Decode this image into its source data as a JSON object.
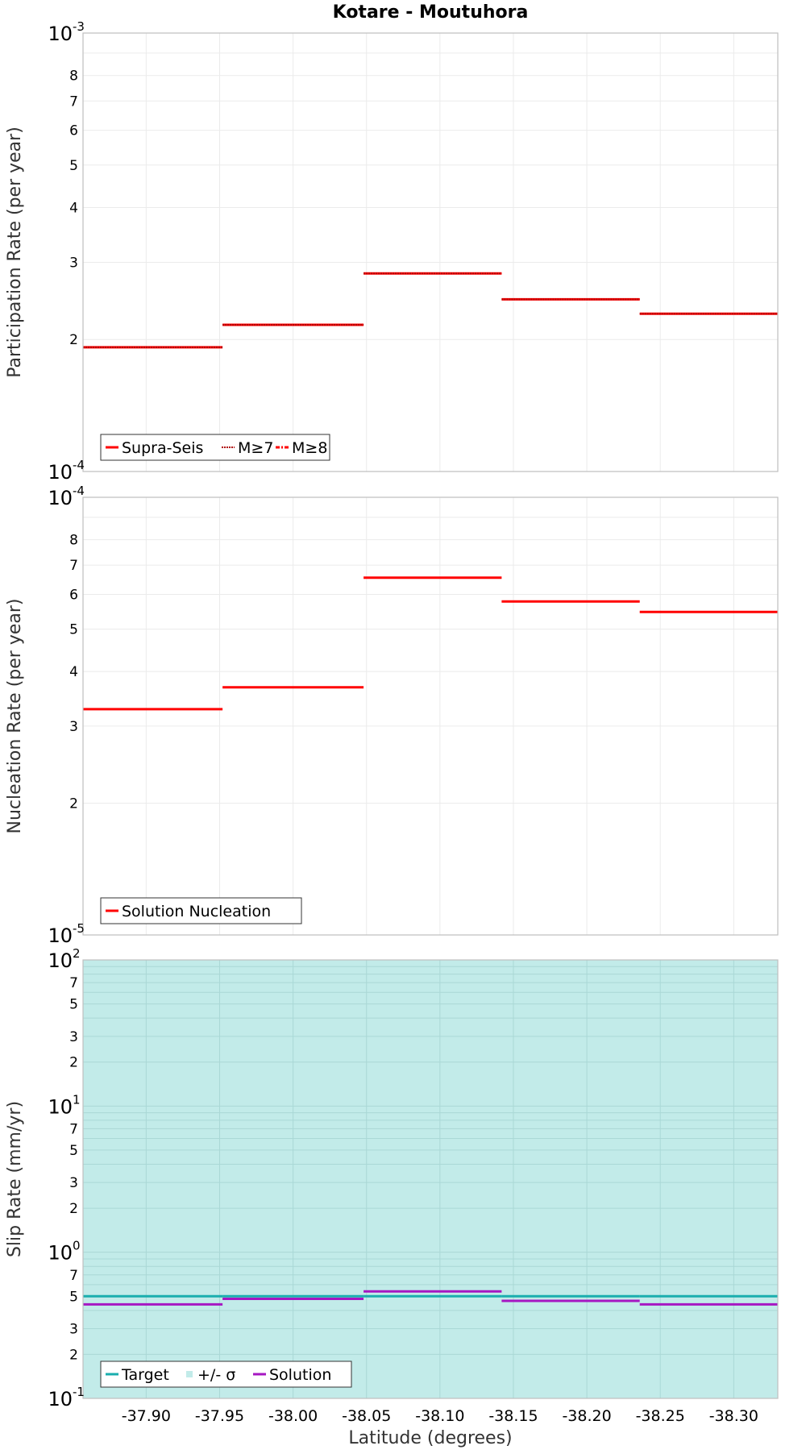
{
  "figure_title": "Kotare - Moutuhora",
  "x_axis_label": "Latitude (degrees)",
  "chart_data": [
    {
      "type": "line",
      "name": "participation",
      "title": "Kotare - Moutuhora",
      "ylabel": "Participation Rate (per year)",
      "yscale": "log",
      "ylim": [
        0.0001,
        0.001
      ],
      "xlim": [
        -37.857,
        -38.33
      ],
      "x_ticks": [
        -37.9,
        -37.95,
        -38.0,
        -38.05,
        -38.1,
        -38.15,
        -38.2,
        -38.25,
        -38.3
      ],
      "y_ticks": [
        {
          "value": 0.001,
          "base": "10",
          "exp": "-3"
        },
        {
          "value": 0.0008,
          "label": "8"
        },
        {
          "value": 0.0007,
          "label": "7"
        },
        {
          "value": 0.0006,
          "label": "6"
        },
        {
          "value": 0.0005,
          "label": "5"
        },
        {
          "value": 0.0004,
          "label": "4"
        },
        {
          "value": 0.0003,
          "label": "3"
        },
        {
          "value": 0.0002,
          "label": "2"
        },
        {
          "value": 0.0001,
          "base": "10",
          "exp": "-4"
        }
      ],
      "series": [
        {
          "name": "Supra-Seis",
          "color": "#ff0000",
          "style": "solid",
          "segments": [
            {
              "x0": -37.857,
              "x1": -37.952,
              "y": 0.000192
            },
            {
              "x0": -37.952,
              "x1": -38.048,
              "y": 0.000216
            },
            {
              "x0": -38.048,
              "x1": -38.142,
              "y": 0.000283
            },
            {
              "x0": -38.142,
              "x1": -38.236,
              "y": 0.000247
            },
            {
              "x0": -38.236,
              "x1": -38.33,
              "y": 0.000229
            }
          ]
        },
        {
          "name": "M≥7",
          "color": "#ff0000",
          "style": "dotted",
          "segments": [
            {
              "x0": -37.857,
              "x1": -37.952,
              "y": 0.000192
            },
            {
              "x0": -37.952,
              "x1": -38.048,
              "y": 0.000216
            },
            {
              "x0": -38.048,
              "x1": -38.142,
              "y": 0.000283
            },
            {
              "x0": -38.142,
              "x1": -38.236,
              "y": 0.000247
            },
            {
              "x0": -38.236,
              "x1": -38.33,
              "y": 0.000229
            }
          ]
        },
        {
          "name": "M≥8",
          "color": "#ff0000",
          "style": "dashdot",
          "segments": []
        }
      ],
      "legend": [
        "Supra-Seis",
        "M≥7",
        "M≥8"
      ],
      "legend_position": "bottom-left"
    },
    {
      "type": "line",
      "name": "nucleation",
      "ylabel": "Nucleation Rate (per year)",
      "yscale": "log",
      "ylim": [
        1e-05,
        0.0001
      ],
      "xlim": [
        -37.857,
        -38.33
      ],
      "x_ticks": [
        -37.9,
        -37.95,
        -38.0,
        -38.05,
        -38.1,
        -38.15,
        -38.2,
        -38.25,
        -38.3
      ],
      "y_ticks": [
        {
          "value": 0.0001,
          "base": "10",
          "exp": "-4"
        },
        {
          "value": 8e-05,
          "label": "8"
        },
        {
          "value": 7e-05,
          "label": "7"
        },
        {
          "value": 6e-05,
          "label": "6"
        },
        {
          "value": 5e-05,
          "label": "5"
        },
        {
          "value": 4e-05,
          "label": "4"
        },
        {
          "value": 3e-05,
          "label": "3"
        },
        {
          "value": 2e-05,
          "label": "2"
        },
        {
          "value": 1e-05,
          "base": "10",
          "exp": "-5"
        }
      ],
      "series": [
        {
          "name": "Solution Nucleation",
          "color": "#ff0000",
          "style": "solid",
          "segments": [
            {
              "x0": -37.857,
              "x1": -37.952,
              "y": 3.28e-05
            },
            {
              "x0": -37.952,
              "x1": -38.048,
              "y": 3.68e-05
            },
            {
              "x0": -38.048,
              "x1": -38.142,
              "y": 6.55e-05
            },
            {
              "x0": -38.142,
              "x1": -38.236,
              "y": 5.78e-05
            },
            {
              "x0": -38.236,
              "x1": -38.33,
              "y": 5.47e-05
            }
          ]
        }
      ],
      "legend": [
        "Solution Nucleation"
      ],
      "legend_position": "bottom-left"
    },
    {
      "type": "line",
      "name": "slip",
      "ylabel": "Slip Rate (mm/yr)",
      "xlabel": "Latitude (degrees)",
      "yscale": "log",
      "ylim": [
        0.1,
        100
      ],
      "xlim": [
        -37.857,
        -38.33
      ],
      "x_ticks": [
        -37.9,
        -37.95,
        -38.0,
        -38.05,
        -38.1,
        -38.15,
        -38.2,
        -38.25,
        -38.3
      ],
      "x_tick_labels": [
        "-37.90",
        "-37.95",
        "-38.00",
        "-38.05",
        "-38.10",
        "-38.15",
        "-38.20",
        "-38.25",
        "-38.30"
      ],
      "y_ticks": [
        {
          "value": 100,
          "base": "10",
          "exp": "2"
        },
        {
          "value": 70,
          "label": "7"
        },
        {
          "value": 50,
          "label": "5"
        },
        {
          "value": 30,
          "label": "3"
        },
        {
          "value": 20,
          "label": "2"
        },
        {
          "value": 10,
          "base": "10",
          "exp": "1"
        },
        {
          "value": 7,
          "label": "7"
        },
        {
          "value": 5,
          "label": "5"
        },
        {
          "value": 3,
          "label": "3"
        },
        {
          "value": 2,
          "label": "2"
        },
        {
          "value": 1,
          "base": "10",
          "exp": "0"
        },
        {
          "value": 0.7,
          "label": "7"
        },
        {
          "value": 0.5,
          "label": "5"
        },
        {
          "value": 0.3,
          "label": "3"
        },
        {
          "value": 0.2,
          "label": "2"
        },
        {
          "value": 0.1,
          "base": "10",
          "exp": "-1"
        }
      ],
      "sigma_band": {
        "name": "+/- σ",
        "color": "#c2ebe9",
        "y0": 0.1,
        "y1": 100
      },
      "series": [
        {
          "name": "Target",
          "color": "#1aaeae",
          "style": "solid",
          "segments": [
            {
              "x0": -37.857,
              "x1": -37.952,
              "y": 0.5
            },
            {
              "x0": -37.952,
              "x1": -38.048,
              "y": 0.5
            },
            {
              "x0": -38.048,
              "x1": -38.142,
              "y": 0.5
            },
            {
              "x0": -38.142,
              "x1": -38.236,
              "y": 0.5
            },
            {
              "x0": -38.236,
              "x1": -38.33,
              "y": 0.5
            }
          ]
        },
        {
          "name": "Solution",
          "color": "#a617c2",
          "style": "solid",
          "segments": [
            {
              "x0": -37.857,
              "x1": -37.952,
              "y": 0.44
            },
            {
              "x0": -37.952,
              "x1": -38.048,
              "y": 0.48
            },
            {
              "x0": -38.048,
              "x1": -38.142,
              "y": 0.54
            },
            {
              "x0": -38.142,
              "x1": -38.236,
              "y": 0.465
            },
            {
              "x0": -38.236,
              "x1": -38.33,
              "y": 0.44
            }
          ]
        }
      ],
      "legend": [
        "Target",
        "+/- σ",
        "Solution"
      ],
      "legend_position": "bottom-left"
    }
  ]
}
